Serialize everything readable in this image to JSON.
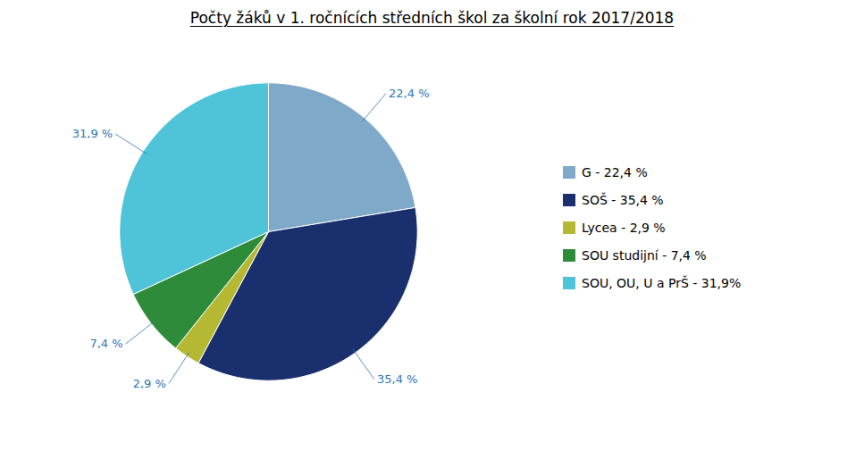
{
  "chart_data": {
    "type": "pie",
    "title": "Počty žáků v 1. ročnících středních škol za školní rok 2017/2018",
    "categories": [
      "G - 22,4 %",
      "SOŠ - 35,4 %",
      "Lycea - 2,9 %",
      "SOU studijní - 7,4 %",
      "SOU, OU, U a PrŠ - 31,9%"
    ],
    "values": [
      22.4,
      35.4,
      2.9,
      7.4,
      31.9
    ],
    "value_labels": [
      "22,4 %",
      "35,4 %",
      "2,9 %",
      "7,4 %",
      "31,9 %"
    ],
    "colors": [
      "#7FA9C9",
      "#1A2F6E",
      "#B5B832",
      "#2E8B3A",
      "#4FC3D8"
    ],
    "data_labels": true,
    "legend": "right"
  }
}
